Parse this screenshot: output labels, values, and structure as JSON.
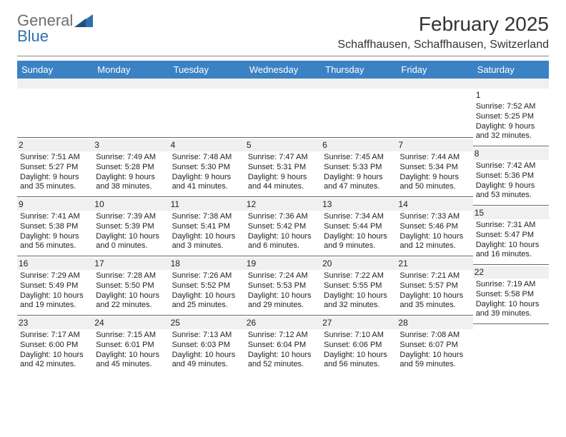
{
  "logo": {
    "text_gray": "General",
    "text_blue": "Blue"
  },
  "title": "February 2025",
  "location": "Schaffhausen, Schaffhausen, Switzerland",
  "colors": {
    "header_bg": "#3b82c4",
    "header_fg": "#ffffff",
    "daynum_bg": "#f0f0f0",
    "rule": "#888888",
    "cell_border": "#5b6b7a",
    "logo_gray": "#6e6e6e",
    "logo_blue": "#2f6fab"
  },
  "day_names": [
    "Sunday",
    "Monday",
    "Tuesday",
    "Wednesday",
    "Thursday",
    "Friday",
    "Saturday"
  ],
  "first_weekday_index": 6,
  "num_days": 28,
  "days": {
    "1": {
      "sunrise": "7:52 AM",
      "sunset": "5:25 PM",
      "daylight": "9 hours and 32 minutes."
    },
    "2": {
      "sunrise": "7:51 AM",
      "sunset": "5:27 PM",
      "daylight": "9 hours and 35 minutes."
    },
    "3": {
      "sunrise": "7:49 AM",
      "sunset": "5:28 PM",
      "daylight": "9 hours and 38 minutes."
    },
    "4": {
      "sunrise": "7:48 AM",
      "sunset": "5:30 PM",
      "daylight": "9 hours and 41 minutes."
    },
    "5": {
      "sunrise": "7:47 AM",
      "sunset": "5:31 PM",
      "daylight": "9 hours and 44 minutes."
    },
    "6": {
      "sunrise": "7:45 AM",
      "sunset": "5:33 PM",
      "daylight": "9 hours and 47 minutes."
    },
    "7": {
      "sunrise": "7:44 AM",
      "sunset": "5:34 PM",
      "daylight": "9 hours and 50 minutes."
    },
    "8": {
      "sunrise": "7:42 AM",
      "sunset": "5:36 PM",
      "daylight": "9 hours and 53 minutes."
    },
    "9": {
      "sunrise": "7:41 AM",
      "sunset": "5:38 PM",
      "daylight": "9 hours and 56 minutes."
    },
    "10": {
      "sunrise": "7:39 AM",
      "sunset": "5:39 PM",
      "daylight": "10 hours and 0 minutes."
    },
    "11": {
      "sunrise": "7:38 AM",
      "sunset": "5:41 PM",
      "daylight": "10 hours and 3 minutes."
    },
    "12": {
      "sunrise": "7:36 AM",
      "sunset": "5:42 PM",
      "daylight": "10 hours and 6 minutes."
    },
    "13": {
      "sunrise": "7:34 AM",
      "sunset": "5:44 PM",
      "daylight": "10 hours and 9 minutes."
    },
    "14": {
      "sunrise": "7:33 AM",
      "sunset": "5:46 PM",
      "daylight": "10 hours and 12 minutes."
    },
    "15": {
      "sunrise": "7:31 AM",
      "sunset": "5:47 PM",
      "daylight": "10 hours and 16 minutes."
    },
    "16": {
      "sunrise": "7:29 AM",
      "sunset": "5:49 PM",
      "daylight": "10 hours and 19 minutes."
    },
    "17": {
      "sunrise": "7:28 AM",
      "sunset": "5:50 PM",
      "daylight": "10 hours and 22 minutes."
    },
    "18": {
      "sunrise": "7:26 AM",
      "sunset": "5:52 PM",
      "daylight": "10 hours and 25 minutes."
    },
    "19": {
      "sunrise": "7:24 AM",
      "sunset": "5:53 PM",
      "daylight": "10 hours and 29 minutes."
    },
    "20": {
      "sunrise": "7:22 AM",
      "sunset": "5:55 PM",
      "daylight": "10 hours and 32 minutes."
    },
    "21": {
      "sunrise": "7:21 AM",
      "sunset": "5:57 PM",
      "daylight": "10 hours and 35 minutes."
    },
    "22": {
      "sunrise": "7:19 AM",
      "sunset": "5:58 PM",
      "daylight": "10 hours and 39 minutes."
    },
    "23": {
      "sunrise": "7:17 AM",
      "sunset": "6:00 PM",
      "daylight": "10 hours and 42 minutes."
    },
    "24": {
      "sunrise": "7:15 AM",
      "sunset": "6:01 PM",
      "daylight": "10 hours and 45 minutes."
    },
    "25": {
      "sunrise": "7:13 AM",
      "sunset": "6:03 PM",
      "daylight": "10 hours and 49 minutes."
    },
    "26": {
      "sunrise": "7:12 AM",
      "sunset": "6:04 PM",
      "daylight": "10 hours and 52 minutes."
    },
    "27": {
      "sunrise": "7:10 AM",
      "sunset": "6:06 PM",
      "daylight": "10 hours and 56 minutes."
    },
    "28": {
      "sunrise": "7:08 AM",
      "sunset": "6:07 PM",
      "daylight": "10 hours and 59 minutes."
    }
  },
  "labels": {
    "sunrise": "Sunrise: ",
    "sunset": "Sunset: ",
    "daylight": "Daylight: "
  }
}
